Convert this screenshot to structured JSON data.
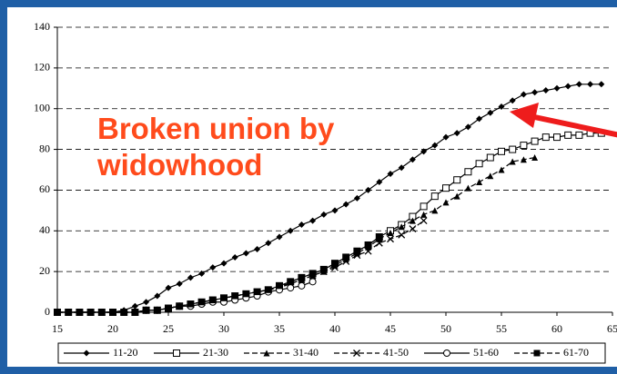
{
  "chart_data": {
    "type": "line",
    "annotation": "Broken union by widowhood",
    "x": [
      15,
      16,
      17,
      18,
      19,
      20,
      21,
      22,
      23,
      24,
      25,
      26,
      27,
      28,
      29,
      30,
      31,
      32,
      33,
      34,
      35,
      36,
      37,
      38,
      39,
      40,
      41,
      42,
      43,
      44,
      45,
      46,
      47,
      48,
      49,
      50,
      51,
      52,
      53,
      54,
      55,
      56,
      57,
      58,
      59,
      60,
      61,
      62,
      63,
      64
    ],
    "xlim": [
      15,
      65
    ],
    "xticks": [
      15,
      20,
      25,
      30,
      35,
      40,
      45,
      50,
      55,
      60,
      65
    ],
    "ylim": [
      0,
      140
    ],
    "yticks": [
      0,
      20,
      40,
      60,
      80,
      100,
      120,
      140
    ],
    "grid": true,
    "legend": "bottom",
    "series": [
      {
        "name": "11-20",
        "color": "#000000",
        "marker": "diamond",
        "dash": false,
        "values": [
          0,
          0,
          0,
          0,
          0,
          0,
          1,
          3,
          5,
          8,
          12,
          14,
          17,
          19,
          22,
          24,
          27,
          29,
          31,
          34,
          37,
          40,
          43,
          45,
          48,
          50,
          53,
          56,
          60,
          64,
          68,
          71,
          75,
          79,
          82,
          86,
          88,
          91,
          95,
          98,
          101,
          104,
          107,
          108,
          109,
          110,
          111,
          112,
          112,
          112
        ]
      },
      {
        "name": "21-30",
        "color": "#000000",
        "marker": "open-square",
        "dash": false,
        "values": [
          0,
          0,
          0,
          0,
          0,
          0,
          0,
          0,
          1,
          1,
          2,
          3,
          4,
          5,
          6,
          7,
          8,
          9,
          10,
          11,
          13,
          15,
          17,
          19,
          21,
          24,
          27,
          30,
          33,
          37,
          40,
          43,
          47,
          52,
          57,
          61,
          65,
          69,
          73,
          76,
          79,
          80,
          82,
          84,
          86,
          86,
          87,
          87,
          88,
          88
        ]
      },
      {
        "name": "31-40",
        "color": "#000000",
        "marker": "triangle",
        "dash": true,
        "values": [
          0,
          0,
          0,
          0,
          0,
          0,
          0,
          0,
          1,
          1,
          2,
          3,
          4,
          5,
          6,
          7,
          8,
          9,
          10,
          11,
          13,
          14,
          16,
          18,
          20,
          23,
          26,
          29,
          32,
          36,
          39,
          42,
          45,
          48,
          50,
          54,
          57,
          61,
          64,
          67,
          70,
          74,
          75,
          76,
          null,
          null,
          null,
          null,
          null,
          null
        ]
      },
      {
        "name": "41-50",
        "color": "#000000",
        "marker": "cross",
        "dash": true,
        "values": [
          0,
          0,
          0,
          0,
          0,
          0,
          0,
          0,
          1,
          1,
          2,
          3,
          4,
          5,
          6,
          7,
          8,
          9,
          10,
          11,
          12,
          14,
          16,
          18,
          20,
          22,
          25,
          28,
          30,
          34,
          36,
          38,
          41,
          45,
          null,
          null,
          null,
          null,
          null,
          null,
          null,
          null,
          null,
          null,
          null,
          null,
          null,
          null,
          null,
          null
        ]
      },
      {
        "name": "51-60",
        "color": "#000000",
        "marker": "open-circle",
        "dash": false,
        "values": [
          0,
          0,
          0,
          0,
          0,
          0,
          0,
          0,
          1,
          1,
          2,
          3,
          3,
          4,
          5,
          5,
          6,
          7,
          8,
          10,
          11,
          12,
          13,
          15,
          null,
          null,
          null,
          null,
          null,
          null,
          null,
          null,
          null,
          null,
          null,
          null,
          null,
          null,
          null,
          null,
          null,
          null,
          null,
          null,
          null,
          null,
          null,
          null,
          null,
          null
        ]
      },
      {
        "name": "61-70",
        "color": "#000000",
        "marker": "square",
        "dash": true,
        "values": [
          0,
          0,
          0,
          0,
          0,
          0,
          0,
          0,
          1,
          1,
          2,
          3,
          4,
          5,
          6,
          7,
          8,
          9,
          10,
          11,
          13,
          15,
          17,
          19,
          21,
          24,
          27,
          30,
          33,
          37,
          null,
          null,
          null,
          null,
          null,
          null,
          null,
          null,
          null,
          null,
          null,
          null,
          null,
          null,
          null,
          null,
          null,
          null,
          null,
          null
        ]
      }
    ]
  }
}
